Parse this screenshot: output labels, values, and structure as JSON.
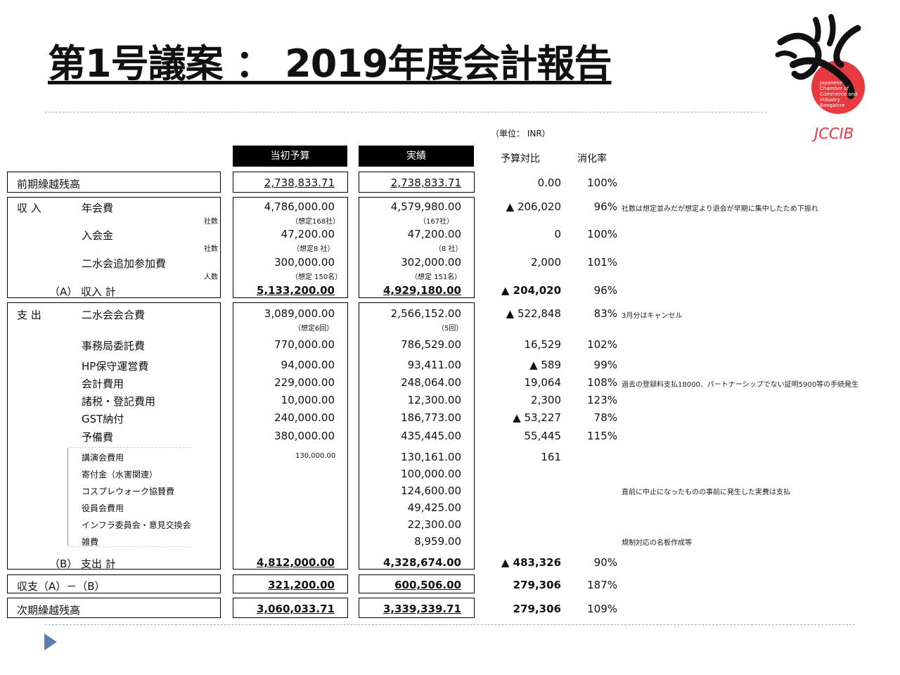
{
  "title": "第1号議案 ： 2019年度会計報告",
  "logo": {
    "name": "JCCIB",
    "circle_text": "Japanese Chamber of Commerce and Industry Bangalore",
    "accent": "#e8393f"
  },
  "unit_note": "（単位： INR）",
  "columns": {
    "budget": "当初予算",
    "actual": "実績",
    "diff": "予算対比",
    "rate": "消化率"
  },
  "carry_in": {
    "label": "前期繰越残高",
    "budget": "2,738,833.71",
    "actual": "2,738,833.71",
    "diff": "0.00",
    "rate": "100%"
  },
  "income": {
    "section": "収 入",
    "rows": [
      {
        "label": "年会費",
        "budget": "4,786,000.00",
        "actual": "4,579,980.00",
        "diff": "▲ 206,020",
        "rate": "96%",
        "note": "社数は想定並みだが想定より退会が早期に集中したため下振れ",
        "sub_label": "社数",
        "budget_sub": "（想定168社）",
        "actual_sub": "（167社）"
      },
      {
        "label": "入会金",
        "budget": "47,200.00",
        "actual": "47,200.00",
        "diff": "0",
        "rate": "100%",
        "sub_label": "社数",
        "budget_sub": "（想定8 社）",
        "actual_sub": "（8 社）"
      },
      {
        "label": "二水会追加参加費",
        "budget": "300,000.00",
        "actual": "302,000.00",
        "diff": "2,000",
        "rate": "101%",
        "sub_label": "人数",
        "budget_sub": "（想定 150名）",
        "actual_sub": "（想定 151名）"
      }
    ],
    "total": {
      "label": "（A） 収入 計",
      "budget": "5,133,200.00",
      "actual": "4,929,180.00",
      "diff": "▲ 204,020",
      "rate": "96%"
    }
  },
  "expense": {
    "section": "支 出",
    "rows": [
      {
        "label": "二水会会合費",
        "budget": "3,089,000.00",
        "actual": "2,566,152.00",
        "diff": "▲ 522,848",
        "rate": "83%",
        "note": "3月分はキャンセル",
        "budget_sub": "（想定6回）",
        "actual_sub": "（5回）"
      },
      {
        "label": "事務局委託費",
        "budget": "770,000.00",
        "actual": "786,529.00",
        "diff": "16,529",
        "rate": "102%"
      },
      {
        "label": "HP保守運営費",
        "budget": "94,000.00",
        "actual": "93,411.00",
        "diff": "▲ 589",
        "rate": "99%"
      },
      {
        "label": "会計費用",
        "budget": "229,000.00",
        "actual": "248,064.00",
        "diff": "19,064",
        "rate": "108%",
        "note": "過去の登録料支払18000、パートナーシップでない証明5900等の手続発生"
      },
      {
        "label": "諸税・登記費用",
        "budget": "10,000.00",
        "actual": "12,300.00",
        "diff": "2,300",
        "rate": "123%"
      },
      {
        "label": "GST納付",
        "budget": "240,000.00",
        "actual": "186,773.00",
        "diff": "▲ 53,227",
        "rate": "78%"
      },
      {
        "label": "予備費",
        "budget": "380,000.00",
        "actual": "435,445.00",
        "diff": "55,445",
        "rate": "115%"
      }
    ],
    "sub_rows": [
      {
        "label": "講演会費用",
        "budget": "130,000.00",
        "actual": "130,161.00",
        "diff": "161"
      },
      {
        "label": "寄付金（水害関連）",
        "actual": "100,000.00"
      },
      {
        "label": "コスプレウォーク協賛費",
        "actual": "124,600.00",
        "note": "直前に中止になったものの事前に発生した実費は支払"
      },
      {
        "label": "役員会費用",
        "actual": "49,425.00"
      },
      {
        "label": "インフラ委員会・意見交換会",
        "actual": "22,300.00"
      },
      {
        "label": "雑費",
        "actual": "8,959.00",
        "note": "規制対応の名板作成等"
      }
    ],
    "total": {
      "label": "（B） 支出 計",
      "budget": "4,812,000.00",
      "actual": "4,328,674.00",
      "diff": "▲ 483,326",
      "rate": "90%"
    }
  },
  "balance": {
    "label": "収支（A）－（B）",
    "budget": "321,200.00",
    "actual": "600,506.00",
    "diff": "279,306",
    "rate": "187%"
  },
  "carry_out": {
    "label": "次期繰越残高",
    "budget": "3,060,033.71",
    "actual": "3,339,339.71",
    "diff": "279,306",
    "rate": "109%"
  }
}
